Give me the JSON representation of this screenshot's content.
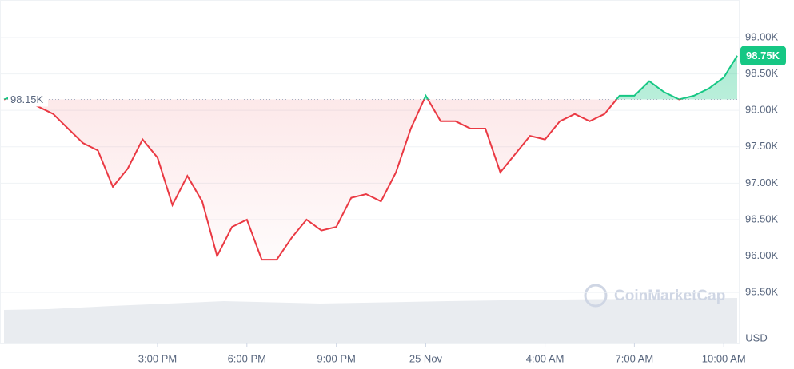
{
  "chart_data": {
    "type": "line",
    "x": [
      9.85,
      10,
      10.5,
      11,
      11.5,
      12,
      12.5,
      13,
      13.5,
      14,
      14.5,
      15,
      15.5,
      16,
      16.5,
      17,
      17.5,
      18,
      18.5,
      19,
      19.5,
      20,
      20.5,
      21,
      21.5,
      22,
      22.5,
      23,
      23.5,
      24,
      24.5,
      25,
      25.5,
      26,
      26.5,
      27,
      27.5,
      28,
      28.5,
      29,
      29.5,
      30,
      30.5,
      31,
      31.5,
      32,
      32.5,
      33,
      33.5,
      34,
      34.45
    ],
    "values": [
      98.15,
      98.17,
      98.13,
      98.05,
      97.95,
      97.75,
      97.55,
      97.45,
      96.95,
      97.2,
      97.6,
      97.35,
      96.7,
      97.1,
      96.75,
      96.0,
      96.4,
      96.5,
      95.95,
      95.95,
      96.25,
      96.5,
      96.35,
      96.4,
      96.8,
      96.85,
      96.75,
      97.15,
      97.75,
      98.2,
      97.85,
      97.85,
      97.75,
      97.75,
      97.15,
      97.4,
      97.65,
      97.6,
      97.85,
      97.95,
      97.85,
      97.95,
      98.2,
      98.2,
      98.4,
      98.25,
      98.15,
      98.2,
      98.3,
      98.45,
      98.75
    ],
    "xlim": [
      9.85,
      34.45
    ],
    "xticks": [
      {
        "value": 15,
        "label": "3:00 PM"
      },
      {
        "value": 18,
        "label": "6:00 PM"
      },
      {
        "value": 21,
        "label": "9:00 PM"
      },
      {
        "value": 24,
        "label": "25 Nov"
      },
      {
        "value": 28,
        "label": "4:00 AM"
      },
      {
        "value": 31,
        "label": "7:00 AM"
      },
      {
        "value": 34,
        "label": "10:00 AM"
      }
    ],
    "ylim": [
      94.8,
      99.515
    ],
    "yticks": [
      {
        "value": 95.5,
        "label": "95.50K"
      },
      {
        "value": 96,
        "label": "96.00K"
      },
      {
        "value": 96.5,
        "label": "96.50K"
      },
      {
        "value": 97,
        "label": "97.00K"
      },
      {
        "value": 97.5,
        "label": "97.50K"
      },
      {
        "value": 98,
        "label": "98.00K"
      },
      {
        "value": 98.5,
        "label": "98.50K"
      },
      {
        "value": 99,
        "label": "99.00K"
      }
    ],
    "baseline": {
      "value": 98.15,
      "label": "98.15K"
    },
    "current_price": {
      "value": 98.75,
      "label": "98.75K"
    },
    "unit": "USD",
    "watermark": "CoinMarketCap",
    "up_color": "#16c784",
    "down_color": "#ea3943",
    "grid": true
  }
}
